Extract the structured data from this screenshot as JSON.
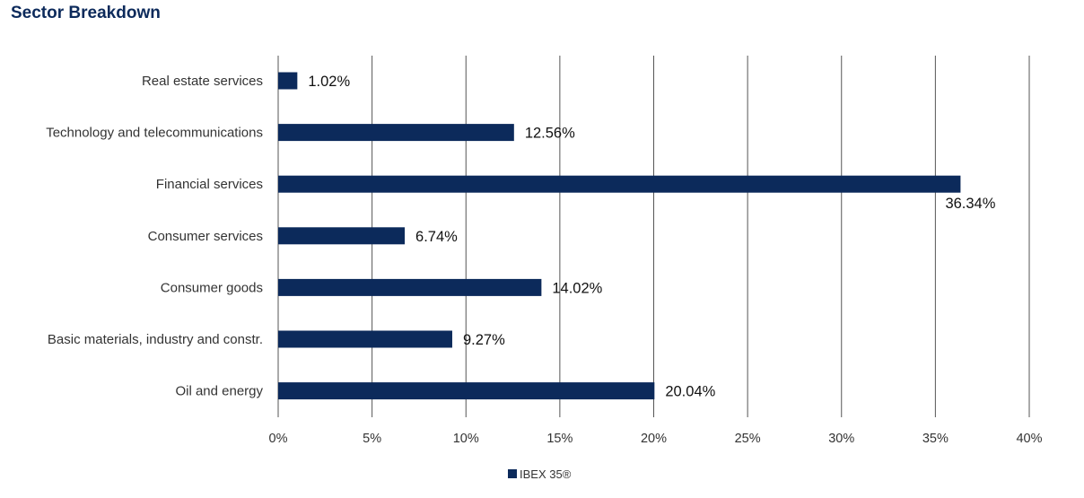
{
  "title": "Sector Breakdown",
  "chart_data": {
    "type": "bar",
    "orientation": "horizontal",
    "title": "Sector Breakdown",
    "categories": [
      "Real estate services",
      "Technology and telecommunications",
      "Financial services",
      "Consumer services",
      "Consumer goods",
      "Basic materials, industry and constr.",
      "Oil and energy"
    ],
    "series": [
      {
        "name": "IBEX 35®",
        "values": [
          1.02,
          12.56,
          36.34,
          6.74,
          14.02,
          9.27,
          20.04
        ],
        "labels": [
          "1.02%",
          "12.56%",
          "36.34%",
          "6.74%",
          "14.02%",
          "9.27%",
          "20.04%"
        ]
      }
    ],
    "xlim": [
      0,
      40
    ],
    "xticks": [
      0,
      5,
      10,
      15,
      20,
      25,
      30,
      35,
      40
    ],
    "xtick_labels": [
      "0%",
      "5%",
      "10%",
      "15%",
      "20%",
      "25%",
      "30%",
      "35%",
      "40%"
    ],
    "grid": "vertical",
    "legend": "bottom-center",
    "bar_color": "#0c2a5b"
  }
}
